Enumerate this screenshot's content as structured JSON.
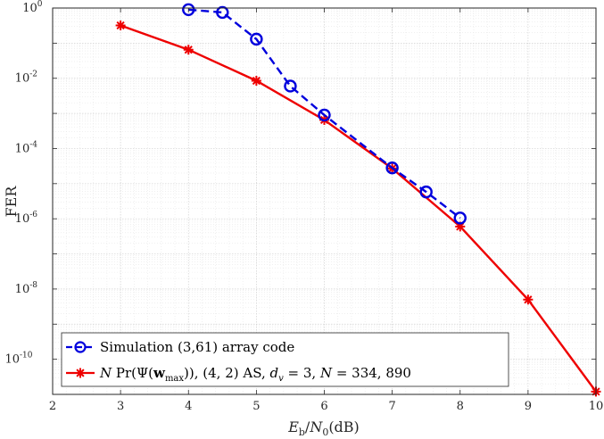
{
  "chart_data": {
    "type": "line",
    "xlabel": "E_b/N_0(dB)",
    "ylabel": "FER",
    "xlim": [
      2,
      10
    ],
    "ylim_exponent": [
      -11,
      0
    ],
    "x_scale": "linear",
    "y_scale": "log",
    "grid": true,
    "legend_position": "bottom-left",
    "x_ticks": [
      "2",
      "3",
      "4",
      "5",
      "6",
      "7",
      "8",
      "9",
      "10"
    ],
    "y_ticks": [
      {
        "base": "10",
        "exp": "0",
        "value": 1
      },
      {
        "base": "10",
        "exp": "-2",
        "value": 0.01
      },
      {
        "base": "10",
        "exp": "-4",
        "value": 0.0001
      },
      {
        "base": "10",
        "exp": "-6",
        "value": 1e-06
      },
      {
        "base": "10",
        "exp": "-8",
        "value": 1e-08
      },
      {
        "base": "10",
        "exp": "-10",
        "value": 1e-10
      }
    ],
    "series": [
      {
        "name": "Simulation (3,61) array code",
        "color": "#0000dd",
        "style": "dashed",
        "marker": "circle",
        "x": [
          4.0,
          4.5,
          5.0,
          5.5,
          6.0,
          7.0,
          7.5,
          8.0
        ],
        "y": [
          0.9,
          0.75,
          0.13,
          0.006,
          0.0009,
          2.8e-05,
          5.8e-06,
          1.05e-06
        ]
      },
      {
        "name": "N Pr(Ψ(w_max)), (4, 2) AS, d_v = 3, N = 334, 890",
        "color": "#ee0000",
        "style": "solid",
        "marker": "asterisk",
        "x": [
          3,
          4,
          5,
          6,
          7,
          8,
          9,
          10
        ],
        "y": [
          0.32,
          0.065,
          0.0085,
          0.00065,
          2.7e-05,
          6e-07,
          5e-09,
          1.2e-11
        ]
      }
    ]
  }
}
